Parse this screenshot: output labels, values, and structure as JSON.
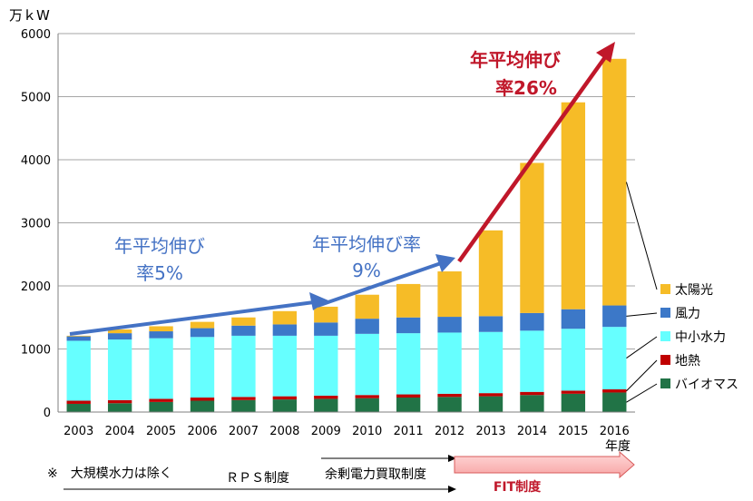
{
  "chart_data": {
    "type": "bar",
    "stacked": true,
    "unit_label": "万ｋW",
    "xlabel": "年度",
    "ylim": [
      0,
      6000
    ],
    "yticks": [
      0,
      1000,
      2000,
      3000,
      4000,
      5000,
      6000
    ],
    "grid": true,
    "legend_position": "right",
    "categories": [
      "2003",
      "2004",
      "2005",
      "2006",
      "2007",
      "2008",
      "2009",
      "2010",
      "2011",
      "2012",
      "2013",
      "2014",
      "2015",
      "2016"
    ],
    "series": [
      {
        "name": "バイオマス",
        "color": "#217346",
        "values": [
          130,
          140,
          160,
          180,
          190,
          200,
          210,
          220,
          230,
          240,
          250,
          270,
          290,
          310
        ]
      },
      {
        "name": "地熱",
        "color": "#c00000",
        "values": [
          50,
          50,
          50,
          50,
          50,
          50,
          50,
          50,
          50,
          50,
          50,
          50,
          50,
          50
        ]
      },
      {
        "name": "中小水力",
        "color": "#66ffff",
        "values": [
          950,
          960,
          960,
          960,
          970,
          960,
          950,
          970,
          970,
          970,
          970,
          970,
          980,
          990
        ]
      },
      {
        "name": "風力",
        "color": "#3c78c8",
        "values": [
          70,
          100,
          110,
          140,
          160,
          180,
          210,
          240,
          250,
          250,
          250,
          280,
          310,
          340
        ]
      },
      {
        "name": "太陽光",
        "color": "#f6bc27",
        "values": [
          10,
          60,
          80,
          100,
          130,
          210,
          250,
          380,
          530,
          720,
          1360,
          2380,
          3280,
          3910
        ]
      }
    ],
    "annotations": {
      "growth_5_line1": "年平均伸び",
      "growth_5_line2": "率5%",
      "growth_9_line1": "年平均伸び率",
      "growth_9_line2": "9%",
      "growth_26_line1": "年平均伸び",
      "growth_26_line2": "率26%",
      "note": "※　大規模水力は除く",
      "rps": "ＲＰＳ制度",
      "surplus": "余剰電力買取制度",
      "fit": "FIT制度"
    }
  }
}
